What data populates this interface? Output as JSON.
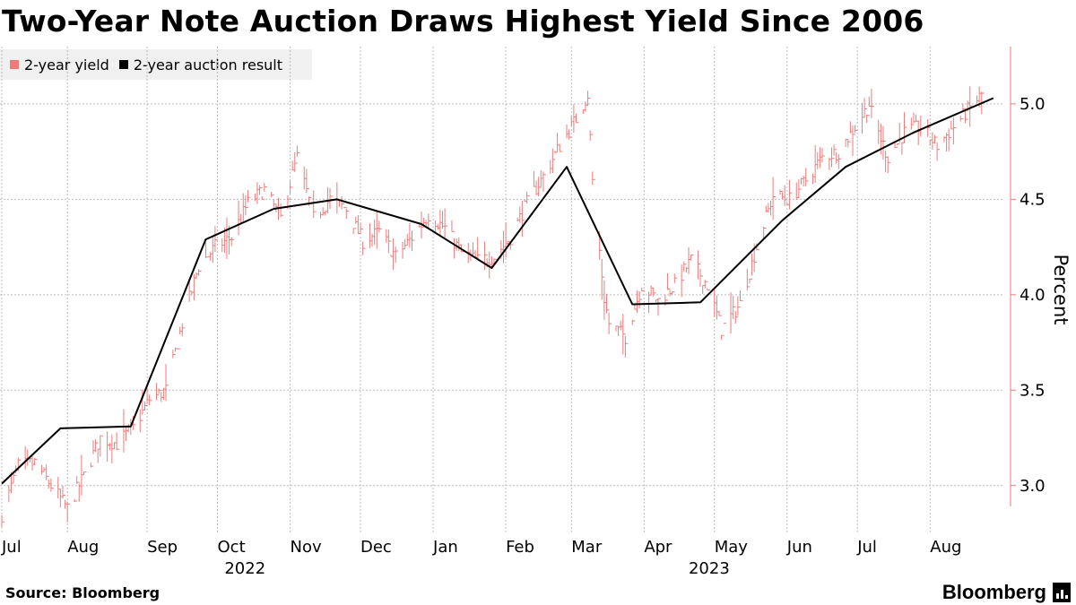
{
  "title": "Two-Year Note Auction Draws Highest Yield Since 2006",
  "source": "Source: Bloomberg",
  "brand": "Bloomberg",
  "colors": {
    "yield": "#f07a7a",
    "auction": "#000000",
    "grid": "#bdbdbd",
    "axis": "#f07a7a"
  },
  "chart_data": {
    "type": "line",
    "ylabel": "Percent",
    "ylim": [
      2.75,
      5.3
    ],
    "yticks": [
      3.0,
      3.5,
      4.0,
      4.5,
      5.0
    ],
    "x_range": [
      "2022-07-01",
      "2023-08-25"
    ],
    "x_ticks": [
      {
        "label": "Jul",
        "date": "2022-07-01"
      },
      {
        "label": "Aug",
        "date": "2022-07-29"
      },
      {
        "label": "Sep",
        "date": "2022-09-01"
      },
      {
        "label": "Oct",
        "date": "2022-10-01"
      },
      {
        "label": "Nov",
        "date": "2022-11-01"
      },
      {
        "label": "Dec",
        "date": "2022-12-01"
      },
      {
        "label": "Jan",
        "date": "2023-01-01"
      },
      {
        "label": "Feb",
        "date": "2023-02-01"
      },
      {
        "label": "Mar",
        "date": "2023-03-01"
      },
      {
        "label": "Apr",
        "date": "2023-04-01"
      },
      {
        "label": "May",
        "date": "2023-05-01"
      },
      {
        "label": "Jun",
        "date": "2023-06-01"
      },
      {
        "label": "Jul",
        "date": "2023-07-01"
      },
      {
        "label": "Aug",
        "date": "2023-08-01"
      }
    ],
    "year_labels": [
      {
        "label": "2022",
        "date": "2022-10-04"
      },
      {
        "label": "2023",
        "date": "2023-04-20"
      }
    ],
    "legend_position": "top-left",
    "grid": true,
    "series": [
      {
        "name": "2-year yield",
        "style": "daily high-low bars",
        "points": [
          [
            "2022-07-01",
            2.85
          ],
          [
            "2022-07-08",
            3.1
          ],
          [
            "2022-07-15",
            3.12
          ],
          [
            "2022-07-22",
            3.0
          ],
          [
            "2022-07-29",
            2.88
          ],
          [
            "2022-08-05",
            3.05
          ],
          [
            "2022-08-12",
            3.25
          ],
          [
            "2022-08-19",
            3.22
          ],
          [
            "2022-08-26",
            3.3
          ],
          [
            "2022-09-02",
            3.45
          ],
          [
            "2022-09-09",
            3.5
          ],
          [
            "2022-09-16",
            3.85
          ],
          [
            "2022-09-23",
            4.15
          ],
          [
            "2022-09-30",
            4.25
          ],
          [
            "2022-10-07",
            4.3
          ],
          [
            "2022-10-14",
            4.48
          ],
          [
            "2022-10-21",
            4.55
          ],
          [
            "2022-10-28",
            4.4
          ],
          [
            "2022-11-04",
            4.72
          ],
          [
            "2022-11-11",
            4.4
          ],
          [
            "2022-11-18",
            4.5
          ],
          [
            "2022-11-25",
            4.45
          ],
          [
            "2022-12-02",
            4.28
          ],
          [
            "2022-12-09",
            4.33
          ],
          [
            "2022-12-16",
            4.2
          ],
          [
            "2022-12-23",
            4.3
          ],
          [
            "2022-12-30",
            4.42
          ],
          [
            "2023-01-06",
            4.35
          ],
          [
            "2023-01-13",
            4.22
          ],
          [
            "2023-01-20",
            4.18
          ],
          [
            "2023-01-27",
            4.2
          ],
          [
            "2023-02-03",
            4.3
          ],
          [
            "2023-02-10",
            4.48
          ],
          [
            "2023-02-17",
            4.62
          ],
          [
            "2023-02-24",
            4.78
          ],
          [
            "2023-03-03",
            4.92
          ],
          [
            "2023-03-08",
            5.05
          ],
          [
            "2023-03-10",
            4.6
          ],
          [
            "2023-03-15",
            3.98
          ],
          [
            "2023-03-17",
            3.85
          ],
          [
            "2023-03-24",
            3.78
          ],
          [
            "2023-03-31",
            4.05
          ],
          [
            "2023-04-07",
            3.97
          ],
          [
            "2023-04-14",
            4.05
          ],
          [
            "2023-04-21",
            4.18
          ],
          [
            "2023-04-28",
            4.05
          ],
          [
            "2023-05-04",
            3.82
          ],
          [
            "2023-05-12",
            3.95
          ],
          [
            "2023-05-19",
            4.25
          ],
          [
            "2023-05-26",
            4.52
          ],
          [
            "2023-06-02",
            4.5
          ],
          [
            "2023-06-09",
            4.6
          ],
          [
            "2023-06-16",
            4.72
          ],
          [
            "2023-06-23",
            4.75
          ],
          [
            "2023-06-30",
            4.88
          ],
          [
            "2023-07-06",
            5.0
          ],
          [
            "2023-07-07",
            4.95
          ],
          [
            "2023-07-14",
            4.72
          ],
          [
            "2023-07-21",
            4.85
          ],
          [
            "2023-07-28",
            4.88
          ],
          [
            "2023-08-04",
            4.78
          ],
          [
            "2023-08-11",
            4.88
          ],
          [
            "2023-08-18",
            4.98
          ],
          [
            "2023-08-23",
            5.05
          ],
          [
            "2023-08-24",
            5.05
          ]
        ]
      },
      {
        "name": "2-year auction result",
        "style": "line",
        "points": [
          [
            "2022-07-01",
            3.01
          ],
          [
            "2022-07-26",
            3.3
          ],
          [
            "2022-08-25",
            3.31
          ],
          [
            "2022-09-26",
            4.29
          ],
          [
            "2022-10-25",
            4.45
          ],
          [
            "2022-11-21",
            4.5
          ],
          [
            "2022-12-27",
            4.37
          ],
          [
            "2023-01-26",
            4.14
          ],
          [
            "2023-02-27",
            4.67
          ],
          [
            "2023-03-27",
            3.95
          ],
          [
            "2023-04-25",
            3.96
          ],
          [
            "2023-05-30",
            4.39
          ],
          [
            "2023-06-26",
            4.67
          ],
          [
            "2023-07-25",
            4.85
          ],
          [
            "2023-08-28",
            5.03
          ]
        ]
      }
    ]
  }
}
